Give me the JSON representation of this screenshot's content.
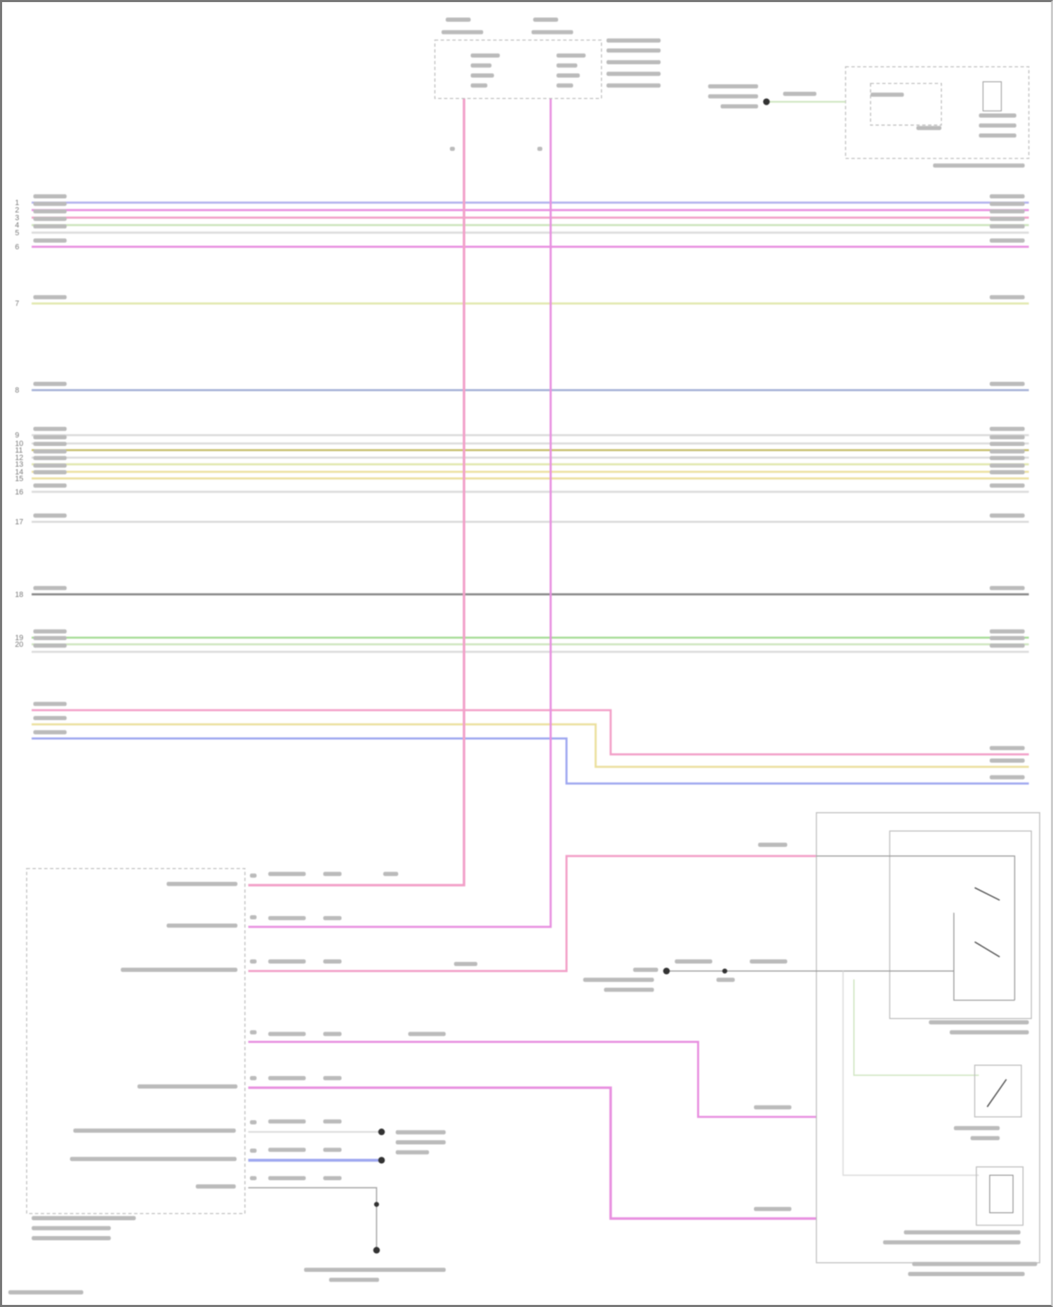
{
  "diagram": {
    "wire_colors": {
      "lavender": "#b4b4ee",
      "pink": "#f2a0c8",
      "magenta": "#e890e0",
      "light_green": "#cfe6c0",
      "yellow_green": "#e2e8b0",
      "blue_grey": "#a8b4d8",
      "olive": "#c8c070",
      "yellow": "#ece0a0",
      "light_grey": "#dcdcdc",
      "dark_grey": "#888888",
      "green": "#a8dc98",
      "blue": "#9fa8f0"
    },
    "left_pin_numbers": [
      "1",
      "2",
      "3",
      "4",
      "5",
      "6",
      "7",
      "8",
      "9",
      "10",
      "11",
      "12",
      "13",
      "14",
      "15",
      "16",
      "17",
      "18",
      "19",
      "20"
    ]
  }
}
